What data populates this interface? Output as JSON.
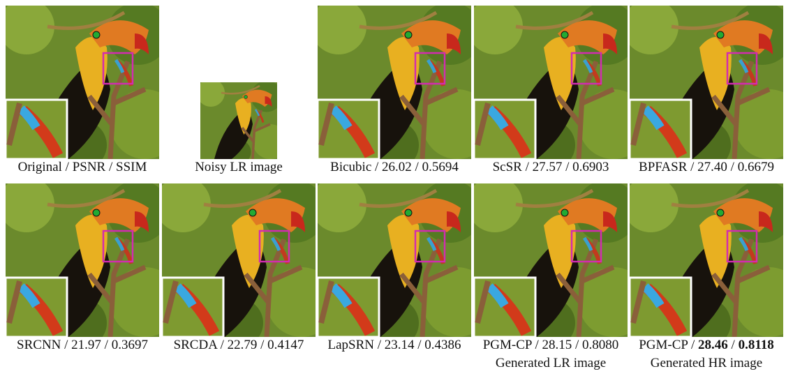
{
  "panels": [
    {
      "caption": "Original / PSNR / SSIM"
    },
    {
      "caption": "Noisy LR image"
    },
    {
      "caption": "Bicubic / 26.02 / 0.5694"
    },
    {
      "caption": "ScSR / 27.57 / 0.6903"
    },
    {
      "caption": "BPFASR / 27.40 / 0.6679"
    },
    {
      "caption": "SRCNN / 21.97 / 0.3697"
    },
    {
      "caption": "SRCDA / 22.79 / 0.4147"
    },
    {
      "caption": "LapSRN / 23.14 / 0.4386"
    },
    {
      "caption": "PGM-CP / 28.15 / 0.8080",
      "subcaption": "Generated LR image"
    },
    {
      "caption_parts": [
        "PGM-CP / ",
        "28.46",
        " / ",
        "0.8118"
      ],
      "subcaption": "Generated HR image"
    }
  ]
}
